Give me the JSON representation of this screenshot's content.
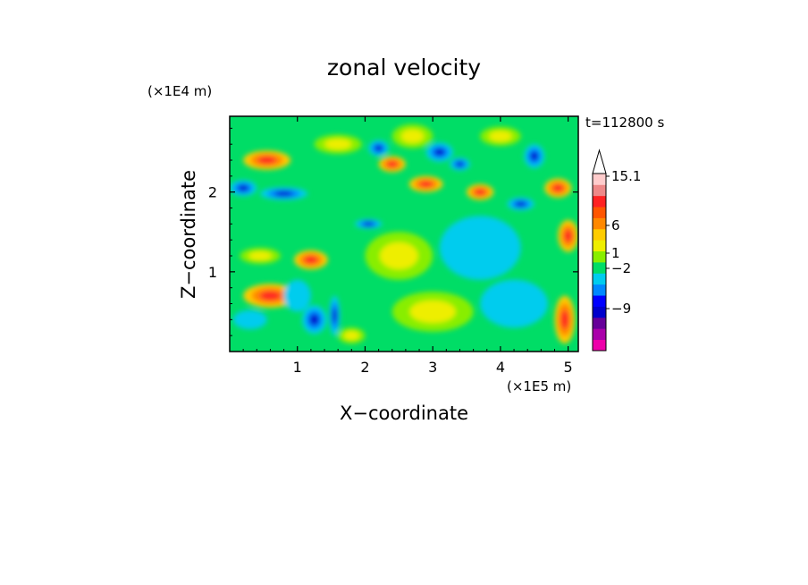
{
  "chart_data": {
    "type": "heatmap",
    "title": "zonal velocity",
    "xlabel": "X−coordinate",
    "ylabel": "Z−coordinate",
    "x_unit": "(×1E5 m)",
    "y_unit": "(×1E4 m)",
    "time_label": "t=112800 s",
    "xlim": [
      0,
      5.15
    ],
    "ylim": [
      0,
      2.95
    ],
    "x_ticks": [
      1,
      2,
      3,
      4,
      5
    ],
    "y_ticks": [
      1,
      2
    ],
    "x_tick_labels": [
      "1",
      "2",
      "3",
      "4",
      "5"
    ],
    "y_tick_labels": [
      "1",
      "2"
    ],
    "colorbar": {
      "levels": [
        {
          "color": "#ee00aa"
        },
        {
          "color": "#aa00aa"
        },
        {
          "color": "#660099"
        },
        {
          "color": "#0000cc"
        },
        {
          "color": "#0000ff"
        },
        {
          "color": "#0088ff"
        },
        {
          "color": "#00ccee"
        },
        {
          "color": "#00dd66"
        },
        {
          "color": "#88ee00"
        },
        {
          "color": "#eeee00"
        },
        {
          "color": "#ffcc00"
        },
        {
          "color": "#ff8800"
        },
        {
          "color": "#ff5500"
        },
        {
          "color": "#ff2222"
        },
        {
          "color": "#ee8888"
        },
        {
          "color": "#ffcccc"
        }
      ],
      "tick_labels": [
        "15.1",
        "6",
        "1",
        "−2",
        "−9"
      ],
      "tick_values": [
        15.1,
        6,
        1,
        -2,
        -9
      ],
      "extend_max": true
    },
    "blobs": [
      {
        "x": 0.55,
        "z": 2.4,
        "rx": 0.35,
        "rz": 0.12,
        "v": 6
      },
      {
        "x": 0.8,
        "z": 1.98,
        "rx": 0.35,
        "rz": 0.08,
        "v": -9
      },
      {
        "x": 0.2,
        "z": 2.05,
        "rx": 0.2,
        "rz": 0.1,
        "v": -9
      },
      {
        "x": 1.2,
        "z": 1.15,
        "rx": 0.25,
        "rz": 0.12,
        "v": 6
      },
      {
        "x": 1.25,
        "z": 0.4,
        "rx": 0.18,
        "rz": 0.18,
        "v": -9
      },
      {
        "x": 1.55,
        "z": 0.45,
        "rx": 0.08,
        "rz": 0.25,
        "v": -9
      },
      {
        "x": 2.2,
        "z": 2.55,
        "rx": 0.15,
        "rz": 0.1,
        "v": -9
      },
      {
        "x": 2.4,
        "z": 2.35,
        "rx": 0.2,
        "rz": 0.1,
        "v": 6
      },
      {
        "x": 2.05,
        "z": 1.6,
        "rx": 0.2,
        "rz": 0.06,
        "v": -9
      },
      {
        "x": 2.9,
        "z": 2.1,
        "rx": 0.25,
        "rz": 0.1,
        "v": 6
      },
      {
        "x": 3.1,
        "z": 2.5,
        "rx": 0.2,
        "rz": 0.12,
        "v": -9
      },
      {
        "x": 3.4,
        "z": 2.35,
        "rx": 0.15,
        "rz": 0.08,
        "v": -9
      },
      {
        "x": 3.7,
        "z": 2.0,
        "rx": 0.2,
        "rz": 0.1,
        "v": 6
      },
      {
        "x": 4.3,
        "z": 1.85,
        "rx": 0.2,
        "rz": 0.08,
        "v": -9
      },
      {
        "x": 4.5,
        "z": 2.45,
        "rx": 0.15,
        "rz": 0.15,
        "v": -9
      },
      {
        "x": 4.85,
        "z": 2.05,
        "rx": 0.2,
        "rz": 0.12,
        "v": 6
      },
      {
        "x": 5.0,
        "z": 1.45,
        "rx": 0.15,
        "rz": 0.2,
        "v": 6
      },
      {
        "x": 3.0,
        "z": 0.5,
        "rx": 0.6,
        "rz": 0.25,
        "v": 1
      },
      {
        "x": 2.5,
        "z": 1.2,
        "rx": 0.5,
        "rz": 0.3,
        "v": 1
      },
      {
        "x": 4.2,
        "z": 0.6,
        "rx": 0.5,
        "rz": 0.3,
        "v": -2
      },
      {
        "x": 3.7,
        "z": 1.3,
        "rx": 0.6,
        "rz": 0.4,
        "v": -2
      },
      {
        "x": 0.45,
        "z": 1.2,
        "rx": 0.3,
        "rz": 0.1,
        "v": 1
      },
      {
        "x": 0.6,
        "z": 0.7,
        "rx": 0.4,
        "rz": 0.15,
        "v": 6
      },
      {
        "x": 0.3,
        "z": 0.4,
        "rx": 0.25,
        "rz": 0.12,
        "v": -2
      },
      {
        "x": 1.0,
        "z": 0.7,
        "rx": 0.2,
        "rz": 0.2,
        "v": -2
      },
      {
        "x": 4.95,
        "z": 0.4,
        "rx": 0.15,
        "rz": 0.3,
        "v": 6
      },
      {
        "x": 1.8,
        "z": 0.2,
        "rx": 0.2,
        "rz": 0.1,
        "v": 1
      },
      {
        "x": 2.7,
        "z": 2.7,
        "rx": 0.3,
        "rz": 0.15,
        "v": 1
      },
      {
        "x": 4.0,
        "z": 2.7,
        "rx": 0.3,
        "rz": 0.12,
        "v": 1
      },
      {
        "x": 1.6,
        "z": 2.6,
        "rx": 0.35,
        "rz": 0.12,
        "v": 1
      }
    ]
  }
}
